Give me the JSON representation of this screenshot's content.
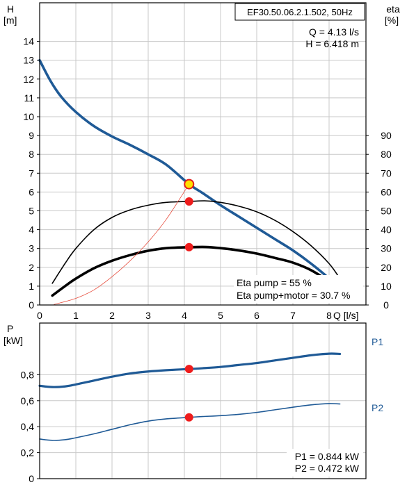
{
  "chart_data": [
    {
      "type": "line",
      "model_label": "EF30.50.06.2.1.502, 50Hz",
      "xlabel": "Q [l/s]",
      "ylabel_left": {
        "symbol": "H",
        "unit": "[m]"
      },
      "ylabel_right": {
        "symbol": "eta",
        "unit": "[%]"
      },
      "xlim": [
        0,
        8.8
      ],
      "ylim": [
        0,
        15
      ],
      "y2lim": [
        0,
        100
      ],
      "x_ticks": [
        0,
        1,
        2,
        3,
        4,
        5,
        6,
        7,
        8
      ],
      "y_ticks": [
        0,
        1,
        2,
        3,
        4,
        5,
        6,
        7,
        8,
        9,
        10,
        11,
        12,
        13,
        14
      ],
      "y2_ticks": [
        0,
        10,
        20,
        30,
        40,
        50,
        60,
        70,
        80,
        90
      ],
      "grid": true,
      "duty_point_text": {
        "q": "Q = 4.13 l/s",
        "h": "H = 6.418 m"
      },
      "eta_text": {
        "pump": "Eta pump = 55 %",
        "pump_motor": "Eta pump+motor = 30.7 %"
      },
      "duty_point": {
        "q": 4.13,
        "h": 6.418,
        "eta_pump": 55,
        "eta_pump_motor": 30.7
      },
      "series": [
        {
          "axis": "H",
          "color": "#1f5a96",
          "points": [
            [
              0,
              13.0
            ],
            [
              0.3,
              11.9
            ],
            [
              0.6,
              11.05
            ],
            [
              1.0,
              10.25
            ],
            [
              1.5,
              9.5
            ],
            [
              2.0,
              8.95
            ],
            [
              2.5,
              8.5
            ],
            [
              3.0,
              8.0
            ],
            [
              3.5,
              7.45
            ],
            [
              4.13,
              6.418
            ],
            [
              4.5,
              5.95
            ],
            [
              5.0,
              5.3
            ],
            [
              5.5,
              4.7
            ],
            [
              6.0,
              4.1
            ],
            [
              6.5,
              3.5
            ],
            [
              7.0,
              2.9
            ],
            [
              7.5,
              2.2
            ],
            [
              8.0,
              1.4
            ],
            [
              8.3,
              0.7
            ]
          ]
        },
        {
          "axis": "eta",
          "color": "#000000",
          "points": [
            [
              0.35,
              11.5
            ],
            [
              0.7,
              22
            ],
            [
              1.0,
              30
            ],
            [
              1.5,
              40
            ],
            [
              2.0,
              46.5
            ],
            [
              2.5,
              50.5
            ],
            [
              3.0,
              53.0
            ],
            [
              3.5,
              54.5
            ],
            [
              4.13,
              55.0
            ],
            [
              4.6,
              55.3
            ],
            [
              5.0,
              54.5
            ],
            [
              5.5,
              52.5
            ],
            [
              6.0,
              49.5
            ],
            [
              6.5,
              45.0
            ],
            [
              7.0,
              39.0
            ],
            [
              7.5,
              31.5
            ],
            [
              8.0,
              22.0
            ],
            [
              8.3,
              14.0
            ],
            [
              8.5,
              8.0
            ]
          ]
        },
        {
          "axis": "eta",
          "color": "#000000",
          "points": [
            [
              0.35,
              5
            ],
            [
              0.7,
              10
            ],
            [
              1.0,
              14
            ],
            [
              1.5,
              19.5
            ],
            [
              2.0,
              23.5
            ],
            [
              2.5,
              26.5
            ],
            [
              3.0,
              28.8
            ],
            [
              3.5,
              30.2
            ],
            [
              4.13,
              30.7
            ],
            [
              4.6,
              30.8
            ],
            [
              5.0,
              30.2
            ],
            [
              5.5,
              29.0
            ],
            [
              6.0,
              27.3
            ],
            [
              6.5,
              25.0
            ],
            [
              7.0,
              22.5
            ],
            [
              7.5,
              18.5
            ],
            [
              8.0,
              12.5
            ],
            [
              8.2,
              9.5
            ]
          ]
        },
        {
          "axis": "H",
          "color": "#e74c3c",
          "points": [
            [
              0.4,
              0.03
            ],
            [
              1.0,
              0.35
            ],
            [
              1.5,
              0.8
            ],
            [
              2.0,
              1.5
            ],
            [
              2.5,
              2.35
            ],
            [
              3.0,
              3.35
            ],
            [
              3.5,
              4.55
            ],
            [
              4.13,
              6.418
            ]
          ]
        }
      ]
    },
    {
      "type": "line",
      "ylabel": {
        "symbol": "P",
        "unit": "[kW]"
      },
      "xlim": [
        0,
        8.8
      ],
      "ylim": [
        0,
        1.0
      ],
      "y_ticks": [
        0,
        0.2,
        0.4,
        0.6,
        0.8
      ],
      "y_tick_labels": [
        "0",
        "0,2",
        "0,4",
        "0,6",
        "0,8"
      ],
      "grid": true,
      "power_text": {
        "p1": "P1 = 0.844 kW",
        "p2": "P2 = 0.472 kW"
      },
      "duty_point": {
        "q": 4.13,
        "p1": 0.844,
        "p2": 0.472
      },
      "series": [
        {
          "name": "P1",
          "color": "#1f5a96",
          "points": [
            [
              0,
              0.715
            ],
            [
              0.35,
              0.705
            ],
            [
              0.7,
              0.71
            ],
            [
              1.0,
              0.725
            ],
            [
              1.5,
              0.755
            ],
            [
              2.0,
              0.785
            ],
            [
              2.5,
              0.81
            ],
            [
              3.0,
              0.825
            ],
            [
              3.5,
              0.835
            ],
            [
              4.13,
              0.844
            ],
            [
              4.5,
              0.85
            ],
            [
              5.0,
              0.86
            ],
            [
              5.5,
              0.875
            ],
            [
              6.0,
              0.89
            ],
            [
              6.5,
              0.91
            ],
            [
              7.0,
              0.93
            ],
            [
              7.5,
              0.95
            ],
            [
              8.0,
              0.962
            ],
            [
              8.3,
              0.96
            ]
          ]
        },
        {
          "name": "P2",
          "color": "#1f5a96",
          "points": [
            [
              0,
              0.305
            ],
            [
              0.35,
              0.295
            ],
            [
              0.7,
              0.3
            ],
            [
              1.0,
              0.315
            ],
            [
              1.5,
              0.345
            ],
            [
              2.0,
              0.38
            ],
            [
              2.5,
              0.415
            ],
            [
              3.0,
              0.443
            ],
            [
              3.5,
              0.46
            ],
            [
              4.13,
              0.472
            ],
            [
              4.5,
              0.478
            ],
            [
              5.0,
              0.485
            ],
            [
              5.5,
              0.495
            ],
            [
              6.0,
              0.51
            ],
            [
              6.5,
              0.53
            ],
            [
              7.0,
              0.55
            ],
            [
              7.5,
              0.568
            ],
            [
              8.0,
              0.578
            ],
            [
              8.3,
              0.575
            ]
          ]
        }
      ]
    }
  ]
}
